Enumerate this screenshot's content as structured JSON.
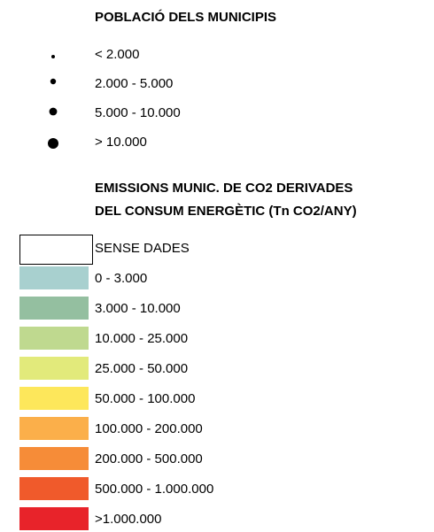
{
  "population_legend": {
    "title": "POBLACIÓ DELS MUNICIPIS",
    "items": [
      {
        "label": "< 2.000"
      },
      {
        "label": "2.000 - 5.000"
      },
      {
        "label": "5.000 - 10.000"
      },
      {
        "label": "> 10.000"
      }
    ]
  },
  "emissions_legend": {
    "title": [
      "EMISSIONS MUNIC. DE CO2 DERIVADES",
      "DEL CONSUM ENERGÈTIC (Tn CO2/ANY)"
    ],
    "items": [
      {
        "label": "SENSE DADES",
        "color": "#ffffff"
      },
      {
        "label": "0 - 3.000",
        "color": "#a8d0cf"
      },
      {
        "label": "3.000 - 10.000",
        "color": "#94bfa0"
      },
      {
        "label": "10.000 - 25.000",
        "color": "#bfd98f"
      },
      {
        "label": "25.000 - 50.000",
        "color": "#e2ea7b"
      },
      {
        "label": "50.000 - 100.000",
        "color": "#fde75b"
      },
      {
        "label": "100.000 - 200.000",
        "color": "#fbaf4a"
      },
      {
        "label": "200.000 - 500.000",
        "color": "#f68c38"
      },
      {
        "label": "500.000 - 1.000.000",
        "color": "#f05a2b"
      },
      {
        "label": ">1.000.000",
        "color": "#e8232a"
      }
    ]
  }
}
